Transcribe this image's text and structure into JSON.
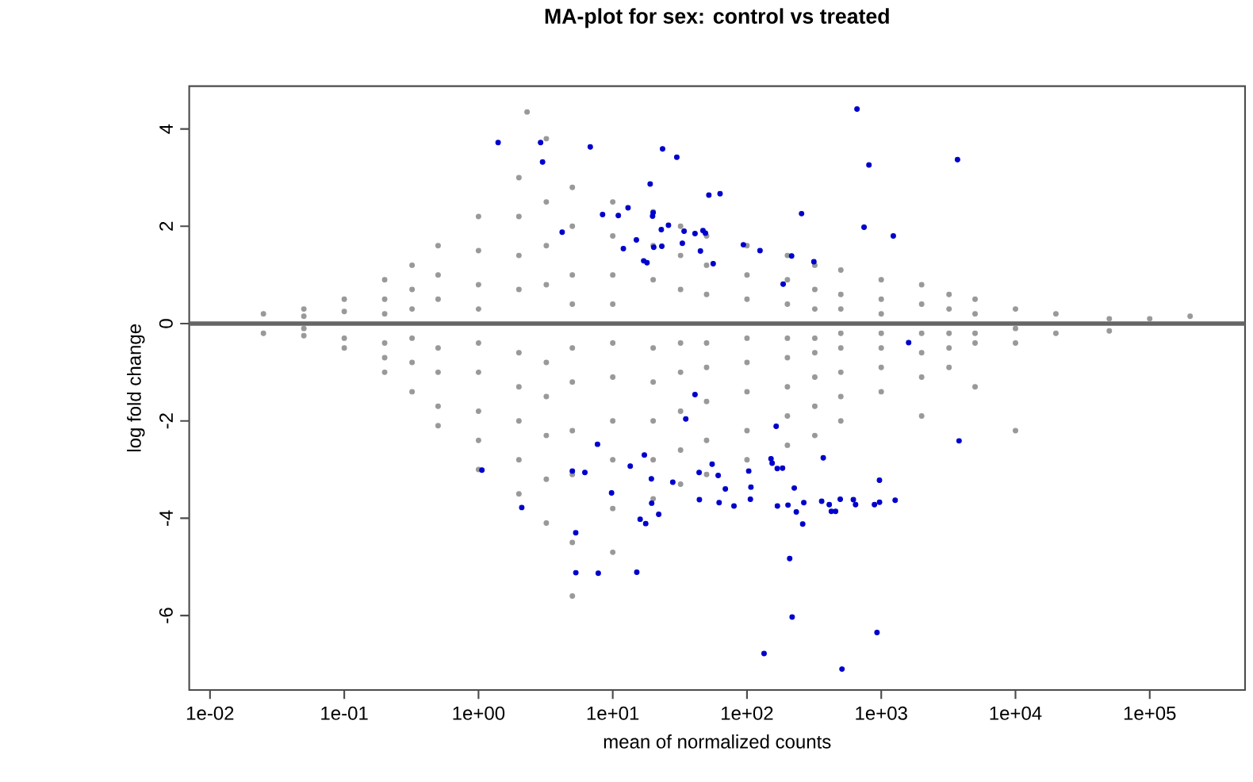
{
  "chart_data": {
    "type": "scatter",
    "title": "MA-plot for sex: control vs treated",
    "xlabel": "mean of normalized counts",
    "ylabel": "log fold change",
    "log": "x",
    "grid": false,
    "xlim": [
      0.007,
      513000
    ],
    "ylim": [
      -7.53,
      4.88
    ],
    "xticks": [
      {
        "value": 0.01,
        "label": "1e-02"
      },
      {
        "value": 0.1,
        "label": "1e-01"
      },
      {
        "value": 1,
        "label": "1e+00"
      },
      {
        "value": 10,
        "label": "1e+01"
      },
      {
        "value": 100,
        "label": "1e+02"
      },
      {
        "value": 1000,
        "label": "1e+03"
      },
      {
        "value": 10000,
        "label": "1e+04"
      },
      {
        "value": 100000,
        "label": "1e+05"
      }
    ],
    "yticks": [
      -6,
      -4,
      -2,
      0,
      2,
      4
    ],
    "ref_lines": [
      {
        "axis": "y",
        "value": 0,
        "color": "#666666"
      }
    ],
    "series": [
      {
        "color": "#999999",
        "x": [
          0.025,
          0.025,
          0.05,
          0.05,
          0.05,
          0.05,
          0.1,
          0.1,
          0.1,
          0.1,
          0.2,
          0.2,
          0.2,
          0.2,
          0.2,
          0.2,
          0.32,
          0.32,
          0.32,
          0.32,
          0.32,
          0.32,
          0.5,
          0.5,
          0.5,
          0.5,
          0.5,
          0.5,
          0.5,
          1,
          1,
          1,
          1,
          1,
          1,
          1,
          1,
          1,
          2,
          2,
          2,
          2,
          2,
          2,
          2,
          2,
          2,
          3.2,
          3.2,
          3.2,
          3.2,
          3.2,
          3.2,
          3.2,
          3.2,
          3.2,
          5,
          5,
          5,
          5,
          5,
          5,
          5,
          5,
          5,
          5,
          10,
          10,
          10,
          10,
          10,
          10,
          10,
          10,
          10,
          10,
          20,
          20,
          20,
          20,
          20,
          20,
          20,
          20,
          32,
          32,
          32,
          32,
          32,
          32,
          32,
          32,
          50,
          50,
          50,
          50,
          50,
          50,
          50,
          50,
          100,
          100,
          100,
          100,
          100,
          100,
          100,
          100,
          200,
          200,
          200,
          200,
          200,
          200,
          200,
          200,
          320,
          320,
          320,
          320,
          320,
          320,
          320,
          320,
          500,
          500,
          500,
          500,
          500,
          500,
          500,
          500,
          1000,
          1000,
          1000,
          1000,
          1000,
          1000,
          1000,
          2000,
          2000,
          2000,
          2000,
          2000,
          2000,
          3200,
          3200,
          3200,
          3200,
          3200,
          5000,
          5000,
          5000,
          5000,
          5000,
          10000,
          10000,
          10000,
          10000,
          20000,
          20000,
          50000,
          50000,
          100000,
          200000,
          2.3
        ],
        "values": [
          0.2,
          -0.2,
          0.3,
          0.15,
          -0.25,
          -0.1,
          0.5,
          0.25,
          -0.3,
          -0.5,
          0.9,
          0.5,
          0.2,
          -0.4,
          -0.7,
          -1.0,
          1.2,
          0.7,
          0.3,
          -0.3,
          -0.8,
          -1.4,
          1.6,
          1.0,
          0.5,
          -0.5,
          -1.0,
          -1.7,
          -2.1,
          2.2,
          1.5,
          0.8,
          0.3,
          -0.4,
          -1.0,
          -1.8,
          -2.4,
          -3.0,
          3.0,
          2.2,
          1.4,
          0.7,
          -0.6,
          -1.3,
          -2.0,
          -2.8,
          -3.5,
          3.8,
          2.5,
          1.6,
          0.8,
          -0.8,
          -1.5,
          -2.3,
          -3.2,
          -4.1,
          2.8,
          2.0,
          1.0,
          0.4,
          -0.5,
          -1.2,
          -2.2,
          -3.1,
          -4.5,
          -5.6,
          2.5,
          1.8,
          1.0,
          0.4,
          -0.4,
          -1.1,
          -2.0,
          -2.8,
          -3.8,
          -4.7,
          2.3,
          1.6,
          0.9,
          -0.5,
          -1.2,
          -2.0,
          -2.8,
          -3.6,
          2.0,
          1.4,
          0.7,
          -0.4,
          -1.0,
          -1.8,
          -2.6,
          -3.3,
          1.8,
          1.2,
          0.6,
          -0.4,
          -0.9,
          -1.6,
          -2.4,
          -3.1,
          1.6,
          1.0,
          0.5,
          -0.3,
          -0.8,
          -1.4,
          -2.2,
          -2.8,
          1.4,
          0.9,
          0.4,
          -0.3,
          -0.7,
          -1.3,
          -1.9,
          -2.5,
          1.2,
          0.7,
          0.3,
          -0.3,
          -0.6,
          -1.1,
          -1.7,
          -2.3,
          1.1,
          0.6,
          0.3,
          -0.2,
          -0.5,
          -1.0,
          -1.5,
          -2.0,
          0.9,
          0.5,
          0.2,
          -0.2,
          -0.5,
          -0.9,
          -1.4,
          0.8,
          0.4,
          -0.2,
          -0.6,
          -1.1,
          -1.9,
          0.6,
          0.3,
          -0.2,
          -0.5,
          -0.9,
          0.5,
          0.2,
          -0.2,
          -0.4,
          -1.3,
          0.3,
          -0.1,
          -0.4,
          -2.2,
          0.2,
          -0.2,
          0.1,
          -0.15,
          0.1,
          0.15,
          4.35
        ]
      },
      {
        "color": "#0000cc",
        "x": [
          1.4,
          2.9,
          3.0,
          6.8,
          23.5,
          30,
          19,
          52,
          63,
          8.4,
          11,
          13,
          20,
          19.8,
          26,
          23,
          34,
          41,
          47,
          49,
          4.2,
          15,
          33,
          12,
          20.2,
          23.2,
          45,
          17,
          18,
          56,
          94,
          125,
          215,
          315,
          255,
          660,
          810,
          745,
          1230,
          3700,
          186,
          1.06,
          2.1,
          1600,
          41,
          35,
          165,
          7.7,
          17.2,
          5.0,
          6.2,
          13.5,
          19.4,
          28,
          44,
          55,
          61,
          69,
          103,
          107,
          151,
          154,
          168,
          184,
          370,
          225,
          970,
          3800,
          9.8,
          44.2,
          62,
          80,
          106,
          168.5,
          202,
          233,
          265,
          360,
          410,
          425,
          457,
          495,
          620,
          644,
          890,
          971,
          1270,
          260,
          19.5,
          22,
          16,
          17.6,
          5.3,
          5.31,
          7.8,
          15.1,
          208,
          217,
          930,
          510,
          134
        ],
        "values": [
          3.72,
          3.72,
          3.32,
          3.63,
          3.59,
          3.42,
          2.87,
          2.64,
          2.67,
          2.24,
          2.22,
          2.38,
          2.28,
          2.21,
          2.02,
          1.93,
          1.9,
          1.85,
          1.91,
          1.86,
          1.88,
          1.72,
          1.65,
          1.54,
          1.57,
          1.59,
          1.49,
          1.29,
          1.25,
          1.23,
          1.62,
          1.5,
          1.39,
          1.27,
          2.26,
          4.41,
          3.26,
          1.98,
          1.8,
          3.37,
          0.81,
          -3.01,
          -3.78,
          -0.39,
          -1.46,
          -1.96,
          -2.11,
          -2.48,
          -2.7,
          -3.03,
          -3.06,
          -2.93,
          -3.19,
          -3.26,
          -3.06,
          -2.89,
          -3.12,
          -3.4,
          -3.03,
          -3.36,
          -2.78,
          -2.87,
          -2.98,
          -2.97,
          -2.76,
          -3.38,
          -3.22,
          -2.41,
          -3.48,
          -3.62,
          -3.68,
          -3.75,
          -3.61,
          -3.75,
          -3.73,
          -3.87,
          -3.68,
          -3.65,
          -3.72,
          -3.86,
          -3.86,
          -3.61,
          -3.62,
          -3.72,
          -3.72,
          -3.67,
          -3.63,
          -4.12,
          -3.69,
          -3.92,
          -4.02,
          -4.11,
          -4.3,
          -5.12,
          -5.13,
          -5.11,
          -4.83,
          -6.03,
          -6.35,
          -7.1,
          -6.78
        ]
      }
    ]
  }
}
